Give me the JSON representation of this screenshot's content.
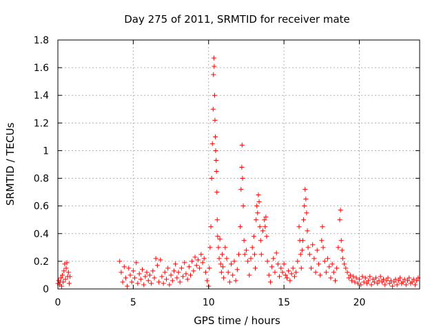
{
  "chart_data": {
    "type": "scatter",
    "title": "Day 275 of 2011, SRMTID for receiver mate",
    "xlabel": "GPS time / hours",
    "ylabel": "SRMTID / TECUs",
    "xlim": [
      0,
      24
    ],
    "ylim": [
      0,
      1.8
    ],
    "xticks": [
      0,
      5,
      10,
      15,
      20
    ],
    "yticks": [
      0,
      0.2,
      0.4,
      0.6,
      0.8,
      1,
      1.2,
      1.4,
      1.6,
      1.8
    ],
    "ytick_labels": [
      "0",
      "0.2",
      "0.4",
      "0.6",
      "0.8",
      "1",
      "1.2",
      "1.4",
      "1.6",
      "1.8"
    ],
    "grid": true,
    "marker": "plus",
    "color": "#ff0000",
    "points": [
      [
        0.0,
        0.04
      ],
      [
        0.05,
        0.06
      ],
      [
        0.1,
        0.03
      ],
      [
        0.15,
        0.05
      ],
      [
        0.2,
        0.08
      ],
      [
        0.25,
        0.02
      ],
      [
        0.3,
        0.1
      ],
      [
        0.35,
        0.05
      ],
      [
        0.4,
        0.13
      ],
      [
        0.45,
        0.18
      ],
      [
        0.5,
        0.07
      ],
      [
        0.55,
        0.15
      ],
      [
        0.6,
        0.19
      ],
      [
        0.65,
        0.09
      ],
      [
        0.7,
        0.12
      ],
      [
        0.75,
        0.04
      ],
      [
        0.8,
        0.09
      ],
      [
        4.1,
        0.2
      ],
      [
        4.2,
        0.12
      ],
      [
        4.3,
        0.05
      ],
      [
        4.4,
        0.16
      ],
      [
        4.5,
        0.08
      ],
      [
        4.6,
        0.02
      ],
      [
        4.7,
        0.15
      ],
      [
        4.8,
        0.1
      ],
      [
        4.9,
        0.05
      ],
      [
        5.0,
        0.13
      ],
      [
        5.1,
        0.08
      ],
      [
        5.2,
        0.19
      ],
      [
        5.3,
        0.04
      ],
      [
        5.4,
        0.11
      ],
      [
        5.5,
        0.07
      ],
      [
        5.6,
        0.14
      ],
      [
        5.7,
        0.03
      ],
      [
        5.8,
        0.09
      ],
      [
        5.9,
        0.12
      ],
      [
        6.0,
        0.06
      ],
      [
        6.1,
        0.1
      ],
      [
        6.2,
        0.04
      ],
      [
        6.3,
        0.13
      ],
      [
        6.4,
        0.08
      ],
      [
        6.5,
        0.22
      ],
      [
        6.6,
        0.17
      ],
      [
        6.7,
        0.05
      ],
      [
        6.8,
        0.21
      ],
      [
        6.9,
        0.09
      ],
      [
        7.0,
        0.04
      ],
      [
        7.1,
        0.12
      ],
      [
        7.2,
        0.07
      ],
      [
        7.3,
        0.15
      ],
      [
        7.4,
        0.03
      ],
      [
        7.5,
        0.1
      ],
      [
        7.6,
        0.06
      ],
      [
        7.7,
        0.13
      ],
      [
        7.8,
        0.18
      ],
      [
        7.9,
        0.08
      ],
      [
        8.0,
        0.12
      ],
      [
        8.1,
        0.05
      ],
      [
        8.2,
        0.15
      ],
      [
        8.3,
        0.09
      ],
      [
        8.4,
        0.19
      ],
      [
        8.5,
        0.11
      ],
      [
        8.6,
        0.07
      ],
      [
        8.7,
        0.16
      ],
      [
        8.8,
        0.1
      ],
      [
        8.9,
        0.2
      ],
      [
        9.0,
        0.13
      ],
      [
        9.1,
        0.23
      ],
      [
        9.2,
        0.17
      ],
      [
        9.3,
        0.21
      ],
      [
        9.4,
        0.15
      ],
      [
        9.5,
        0.25
      ],
      [
        9.6,
        0.19
      ],
      [
        9.7,
        0.22
      ],
      [
        9.8,
        0.12
      ],
      [
        9.9,
        0.06
      ],
      [
        10.0,
        0.02
      ],
      [
        10.05,
        0.15
      ],
      [
        10.1,
        0.3
      ],
      [
        10.15,
        0.45
      ],
      [
        10.2,
        0.8
      ],
      [
        10.25,
        1.05
      ],
      [
        10.3,
        1.3
      ],
      [
        10.32,
        1.55
      ],
      [
        10.35,
        1.67
      ],
      [
        10.37,
        1.61
      ],
      [
        10.4,
        1.4
      ],
      [
        10.42,
        1.22
      ],
      [
        10.45,
        1.1
      ],
      [
        10.47,
        1.0
      ],
      [
        10.5,
        0.93
      ],
      [
        10.52,
        0.85
      ],
      [
        10.55,
        0.7
      ],
      [
        10.57,
        0.5
      ],
      [
        10.6,
        0.38
      ],
      [
        10.65,
        0.3
      ],
      [
        10.7,
        0.22
      ],
      [
        10.75,
        0.36
      ],
      [
        10.8,
        0.18
      ],
      [
        10.85,
        0.12
      ],
      [
        10.9,
        0.25
      ],
      [
        10.95,
        0.16
      ],
      [
        11.0,
        0.08
      ],
      [
        11.1,
        0.3
      ],
      [
        11.2,
        0.22
      ],
      [
        11.3,
        0.12
      ],
      [
        11.4,
        0.05
      ],
      [
        11.5,
        0.18
      ],
      [
        11.6,
        0.1
      ],
      [
        11.7,
        0.2
      ],
      [
        11.8,
        0.06
      ],
      [
        11.9,
        0.14
      ],
      [
        12.0,
        0.25
      ],
      [
        12.1,
        0.45
      ],
      [
        12.15,
        0.72
      ],
      [
        12.2,
        0.88
      ],
      [
        12.22,
        1.04
      ],
      [
        12.25,
        0.8
      ],
      [
        12.3,
        0.6
      ],
      [
        12.35,
        0.35
      ],
      [
        12.4,
        0.25
      ],
      [
        12.5,
        0.28
      ],
      [
        12.6,
        0.2
      ],
      [
        12.7,
        0.1
      ],
      [
        12.8,
        0.22
      ],
      [
        12.9,
        0.3
      ],
      [
        13.0,
        0.38
      ],
      [
        13.05,
        0.25
      ],
      [
        13.1,
        0.15
      ],
      [
        13.15,
        0.5
      ],
      [
        13.2,
        0.6
      ],
      [
        13.25,
        0.55
      ],
      [
        13.3,
        0.68
      ],
      [
        13.35,
        0.63
      ],
      [
        13.4,
        0.45
      ],
      [
        13.45,
        0.35
      ],
      [
        13.5,
        0.25
      ],
      [
        13.6,
        0.42
      ],
      [
        13.7,
        0.5
      ],
      [
        13.75,
        0.45
      ],
      [
        13.8,
        0.52
      ],
      [
        13.85,
        0.38
      ],
      [
        13.9,
        0.2
      ],
      [
        14.0,
        0.1
      ],
      [
        14.1,
        0.05
      ],
      [
        14.2,
        0.16
      ],
      [
        14.3,
        0.22
      ],
      [
        14.4,
        0.12
      ],
      [
        14.5,
        0.26
      ],
      [
        14.6,
        0.18
      ],
      [
        14.7,
        0.09
      ],
      [
        14.8,
        0.15
      ],
      [
        14.9,
        0.12
      ],
      [
        15.0,
        0.18
      ],
      [
        15.1,
        0.1
      ],
      [
        15.2,
        0.08
      ],
      [
        15.3,
        0.13
      ],
      [
        15.4,
        0.06
      ],
      [
        15.5,
        0.11
      ],
      [
        15.6,
        0.15
      ],
      [
        15.7,
        0.09
      ],
      [
        15.8,
        0.12
      ],
      [
        15.9,
        0.2
      ],
      [
        16.0,
        0.45
      ],
      [
        16.05,
        0.35
      ],
      [
        16.1,
        0.25
      ],
      [
        16.15,
        0.15
      ],
      [
        16.2,
        0.28
      ],
      [
        16.25,
        0.35
      ],
      [
        16.3,
        0.5
      ],
      [
        16.35,
        0.6
      ],
      [
        16.4,
        0.72
      ],
      [
        16.45,
        0.65
      ],
      [
        16.5,
        0.55
      ],
      [
        16.55,
        0.42
      ],
      [
        16.6,
        0.3
      ],
      [
        16.7,
        0.25
      ],
      [
        16.8,
        0.15
      ],
      [
        16.9,
        0.32
      ],
      [
        17.0,
        0.22
      ],
      [
        17.1,
        0.12
      ],
      [
        17.2,
        0.28
      ],
      [
        17.3,
        0.18
      ],
      [
        17.4,
        0.1
      ],
      [
        17.5,
        0.35
      ],
      [
        17.55,
        0.45
      ],
      [
        17.6,
        0.3
      ],
      [
        17.7,
        0.2
      ],
      [
        17.8,
        0.12
      ],
      [
        17.9,
        0.22
      ],
      [
        18.0,
        0.16
      ],
      [
        18.1,
        0.08
      ],
      [
        18.2,
        0.18
      ],
      [
        18.3,
        0.12
      ],
      [
        18.4,
        0.06
      ],
      [
        18.5,
        0.15
      ],
      [
        18.6,
        0.3
      ],
      [
        18.7,
        0.5
      ],
      [
        18.75,
        0.57
      ],
      [
        18.8,
        0.35
      ],
      [
        18.85,
        0.28
      ],
      [
        18.9,
        0.22
      ],
      [
        19.0,
        0.18
      ],
      [
        19.1,
        0.15
      ],
      [
        19.2,
        0.12
      ],
      [
        19.3,
        0.08
      ],
      [
        19.4,
        0.1
      ],
      [
        19.5,
        0.06
      ],
      [
        19.6,
        0.09
      ],
      [
        19.7,
        0.05
      ],
      [
        19.8,
        0.08
      ],
      [
        19.9,
        0.04
      ],
      [
        20.0,
        0.07
      ],
      [
        20.1,
        0.03
      ],
      [
        20.2,
        0.09
      ],
      [
        20.3,
        0.05
      ],
      [
        20.4,
        0.08
      ],
      [
        20.5,
        0.04
      ],
      [
        20.6,
        0.06
      ],
      [
        20.7,
        0.09
      ],
      [
        20.8,
        0.03
      ],
      [
        20.9,
        0.07
      ],
      [
        21.0,
        0.05
      ],
      [
        21.1,
        0.08
      ],
      [
        21.2,
        0.04
      ],
      [
        21.3,
        0.06
      ],
      [
        21.4,
        0.09
      ],
      [
        21.5,
        0.05
      ],
      [
        21.6,
        0.07
      ],
      [
        21.7,
        0.03
      ],
      [
        21.8,
        0.06
      ],
      [
        21.9,
        0.08
      ],
      [
        22.0,
        0.04
      ],
      [
        22.1,
        0.06
      ],
      [
        22.2,
        0.02
      ],
      [
        22.3,
        0.05
      ],
      [
        22.4,
        0.07
      ],
      [
        22.5,
        0.03
      ],
      [
        22.6,
        0.06
      ],
      [
        22.7,
        0.08
      ],
      [
        22.8,
        0.04
      ],
      [
        22.9,
        0.05
      ],
      [
        23.0,
        0.07
      ],
      [
        23.1,
        0.03
      ],
      [
        23.2,
        0.06
      ],
      [
        23.3,
        0.08
      ],
      [
        23.4,
        0.04
      ],
      [
        23.5,
        0.05
      ],
      [
        23.6,
        0.07
      ],
      [
        23.7,
        0.03
      ],
      [
        23.8,
        0.06
      ],
      [
        23.9,
        0.08
      ]
    ]
  }
}
